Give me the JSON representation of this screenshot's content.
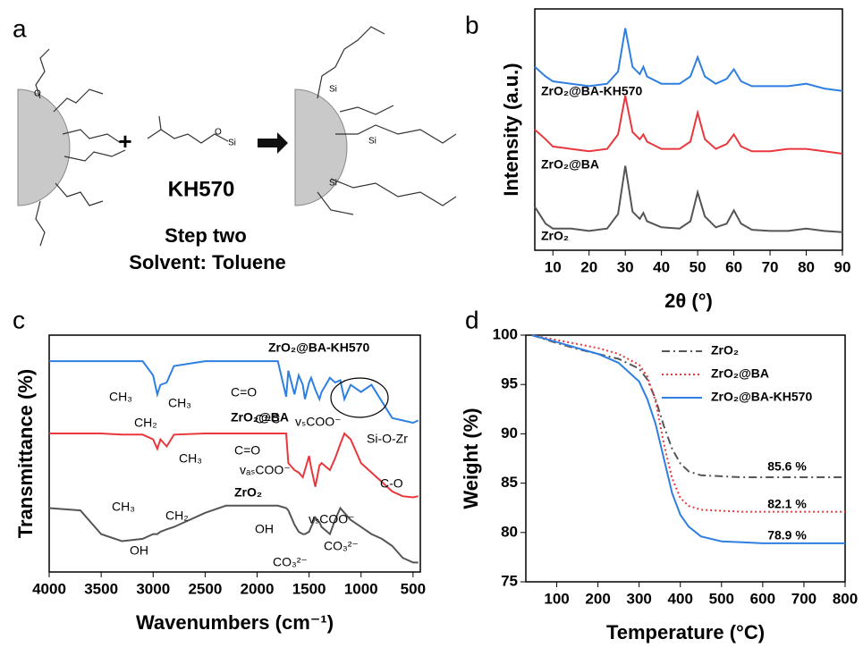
{
  "scheme": {
    "panel_label": "a",
    "reagent": "KH570",
    "step": "Step two",
    "solvent": "Solvent: Toluene",
    "atom_labels": [
      "O",
      "Si"
    ]
  },
  "chart_data": [
    {
      "type": "line",
      "panel_label": "b",
      "xlabel": "2θ (°)",
      "ylabel": "Intensity (a.u.)",
      "x": [
        5,
        8,
        10,
        15,
        20,
        25,
        28,
        30,
        32,
        34,
        35,
        36,
        40,
        45,
        48,
        50,
        52,
        55,
        58,
        60,
        62,
        65,
        70,
        75,
        80,
        85,
        90
      ],
      "series": [
        {
          "name": "ZrO₂@BA-KH570",
          "color": "#2f7fe0",
          "dash": "solid",
          "values": [
            7.6,
            7.2,
            7.0,
            6.9,
            6.8,
            6.9,
            7.4,
            9.2,
            7.6,
            7.3,
            7.6,
            7.2,
            6.9,
            6.9,
            7.2,
            8.0,
            7.2,
            6.9,
            7.1,
            7.5,
            7.0,
            6.8,
            6.8,
            6.8,
            6.9,
            6.7,
            6.6
          ]
        },
        {
          "name": "ZrO₂@BA",
          "color": "#e8383d",
          "dash": "solid",
          "values": [
            5.0,
            4.6,
            4.3,
            4.2,
            4.1,
            4.2,
            4.8,
            6.4,
            4.9,
            4.6,
            4.8,
            4.5,
            4.2,
            4.2,
            4.5,
            5.7,
            4.6,
            4.2,
            4.4,
            4.8,
            4.3,
            4.1,
            4.1,
            4.2,
            4.2,
            4.1,
            4.0
          ]
        },
        {
          "name": "ZrO₂",
          "color": "#555555",
          "dash": "solid",
          "values": [
            1.8,
            1.1,
            0.9,
            0.9,
            0.8,
            0.9,
            1.5,
            3.5,
            1.6,
            1.3,
            1.55,
            1.2,
            0.95,
            0.9,
            1.2,
            2.4,
            1.4,
            0.95,
            1.1,
            1.65,
            1.1,
            0.85,
            0.8,
            0.8,
            0.9,
            0.8,
            0.75
          ]
        }
      ],
      "xlim": [
        5,
        90
      ],
      "ylim": [
        0,
        10
      ],
      "xticks": [
        10,
        20,
        30,
        40,
        50,
        60,
        70,
        80,
        90
      ]
    },
    {
      "type": "line",
      "panel_label": "c",
      "xlabel": "Wavenumbers (cm⁻¹)",
      "ylabel": "Transmittance (%)",
      "x": [
        4000,
        3700,
        3500,
        3300,
        3100,
        3000,
        2960,
        2930,
        2870,
        2800,
        2500,
        2300,
        1800,
        1720,
        1700,
        1640,
        1600,
        1560,
        1540,
        1500,
        1480,
        1440,
        1400,
        1380,
        1300,
        1250,
        1200,
        1160,
        1100,
        1000,
        900,
        800,
        700,
        600,
        500,
        450
      ],
      "series": [
        {
          "name": "ZrO₂@BA-KH570",
          "color": "#2f7fe0",
          "dash": "solid",
          "values": [
            8.9,
            8.9,
            8.9,
            8.9,
            8.9,
            8.3,
            7.5,
            7.9,
            8.0,
            8.7,
            8.9,
            8.9,
            8.9,
            7.4,
            8.5,
            7.5,
            8.3,
            7.9,
            7.3,
            8.0,
            8.2,
            7.7,
            7.3,
            7.6,
            8.2,
            8.0,
            8.1,
            7.3,
            7.9,
            7.6,
            7.9,
            7.2,
            6.5,
            6.4,
            6.3,
            6.4
          ]
        },
        {
          "name": "ZrO₂@BA",
          "color": "#e8383d",
          "dash": "solid",
          "values": [
            5.85,
            5.85,
            5.85,
            5.8,
            5.8,
            5.6,
            5.2,
            5.6,
            5.3,
            5.8,
            5.85,
            5.85,
            5.85,
            5.85,
            4.6,
            4.3,
            4.2,
            4.0,
            4.3,
            4.9,
            4.4,
            3.6,
            4.5,
            4.6,
            4.3,
            4.8,
            5.4,
            5.85,
            5.6,
            4.6,
            4.2,
            3.8,
            3.4,
            3.2,
            3.15,
            3.2
          ]
        },
        {
          "name": "ZrO₂",
          "color": "#555555",
          "dash": "solid",
          "values": [
            2.7,
            2.6,
            1.6,
            1.3,
            1.4,
            1.6,
            1.6,
            1.7,
            1.8,
            1.9,
            2.5,
            2.8,
            2.8,
            2.7,
            2.6,
            2.0,
            1.7,
            1.6,
            1.6,
            1.7,
            1.9,
            2.3,
            2.1,
            1.9,
            1.6,
            2.2,
            2.7,
            2.5,
            2.2,
            1.9,
            1.6,
            1.4,
            1.1,
            0.6,
            0.4,
            0.4
          ]
        }
      ],
      "annotations": [
        "CH₃",
        "CH₃",
        "CH₂",
        "C=O",
        "C=C",
        "vₛCOO⁻",
        "Si-O-Zr",
        "C=O",
        "vₐₛCOO⁻",
        "CH₃",
        "CH₃",
        "CH₂",
        "vₛCOO⁻",
        "C-O",
        "OH",
        "OH",
        "CO₃²⁻",
        "CO₃²⁻"
      ],
      "xlim": [
        4000,
        430
      ],
      "ylim": [
        0,
        10
      ],
      "xticks": [
        4000,
        3500,
        3000,
        2500,
        2000,
        1500,
        1000,
        500
      ]
    },
    {
      "type": "line",
      "panel_label": "d",
      "xlabel": "Temperature (°C)",
      "ylabel": "Weight (%)",
      "x": [
        40,
        100,
        150,
        200,
        250,
        300,
        320,
        340,
        360,
        380,
        400,
        420,
        450,
        500,
        550,
        600,
        700,
        800
      ],
      "series": [
        {
          "name": "ZrO₂",
          "color": "#555555",
          "dash": "dash-dot",
          "values": [
            100,
            99.2,
            98.6,
            98.1,
            97.6,
            96.6,
            95.5,
            93.5,
            90.8,
            88.5,
            87.0,
            86.2,
            85.8,
            85.7,
            85.6,
            85.6,
            85.6,
            85.6
          ]
        },
        {
          "name": "ZrO₂@BA",
          "color": "#e8383d",
          "dash": "dotted",
          "values": [
            100,
            99.5,
            99.1,
            98.7,
            98.1,
            97.0,
            95.8,
            93.3,
            89.0,
            85.5,
            83.5,
            82.7,
            82.3,
            82.2,
            82.1,
            82.1,
            82.1,
            82.1
          ]
        },
        {
          "name": "ZrO₂@BA-KH570",
          "color": "#2f7fe0",
          "dash": "solid",
          "values": [
            100,
            99.3,
            98.7,
            98.1,
            97.2,
            95.3,
            93.5,
            91.0,
            87.5,
            84.0,
            81.8,
            80.6,
            79.6,
            79.1,
            79.0,
            78.9,
            78.9,
            78.9
          ]
        }
      ],
      "annotations": [
        "85.6 %",
        "82.1 %",
        "78.9 %"
      ],
      "legend": "upper right",
      "xlim": [
        25,
        800
      ],
      "ylim": [
        75,
        100
      ],
      "xticks": [
        100,
        200,
        300,
        400,
        500,
        600,
        700,
        800
      ],
      "yticks": [
        75,
        80,
        85,
        90,
        95,
        100
      ]
    }
  ]
}
